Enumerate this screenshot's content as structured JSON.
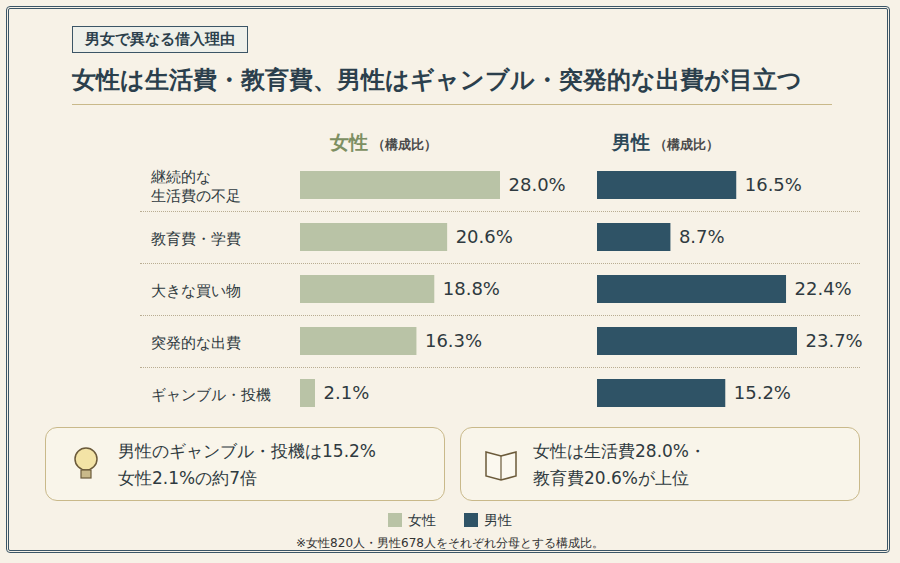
{
  "header": {
    "tag": "男女で異なる借入理由",
    "title": "女性は生活費・教育費、男性はギャンブル・突発的な出費が目立つ"
  },
  "chart_data": [
    {
      "type": "bar",
      "orientation": "horizontal",
      "title": "女性",
      "subtitle": "（構成比）",
      "categories": [
        "継続的な生活費の不足",
        "教育費・学費",
        "大きな買い物",
        "突発的な出費",
        "ギャンブル・投機"
      ],
      "values": [
        28.0,
        20.6,
        18.8,
        16.3,
        2.1
      ],
      "value_labels": [
        "28.0%",
        "20.6%",
        "18.8%",
        "16.3%",
        "2.1%"
      ],
      "xlim": [
        0,
        28.0
      ],
      "color": "#b9c3a6",
      "data_labels": true,
      "tick_labels": "y"
    },
    {
      "type": "bar",
      "orientation": "horizontal",
      "title": "男性",
      "subtitle": "（構成比）",
      "categories": [
        "継続的な生活費の不足",
        "教育費・学費",
        "大きな買い物",
        "突発的な出費",
        "ギャンブル・投機"
      ],
      "values": [
        16.5,
        8.7,
        22.4,
        23.7,
        15.2
      ],
      "value_labels": [
        "16.5%",
        "8.7%",
        "22.4%",
        "23.7%",
        "15.2%"
      ],
      "xlim": [
        0,
        23.7
      ],
      "color": "#2f5366",
      "data_labels": true,
      "tick_labels": false
    }
  ],
  "legend": "bottom",
  "annotations": [
    {
      "lines": [
        "男性のギャンブル・投機は15.2%",
        "女性2.1%の約7倍"
      ]
    },
    {
      "lines": [
        "女性は生活費28.0%・",
        "教育費20.6%が上位"
      ]
    }
  ],
  "caption": "※女性820人・男性678人をそれぞれ分母とする構成比。"
}
